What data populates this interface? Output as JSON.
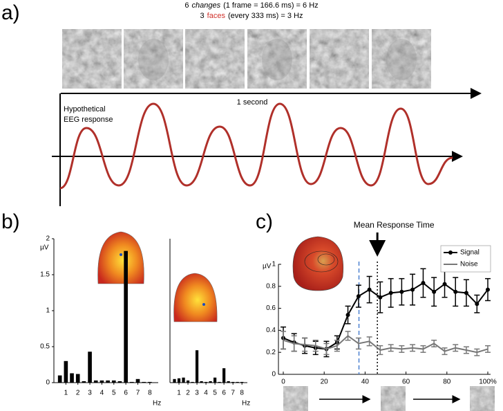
{
  "chart_data": [
    {
      "type": "diagram",
      "panel_label": "a)",
      "caption": [
        {
          "number": "6",
          "emphasis": "changes",
          "rest": "(1 frame = 166.6 ms) = 6 Hz"
        },
        {
          "number": "3",
          "emphasis": "faces",
          "rest": "(every 333 ms) = 3 Hz",
          "emphasis_color": "#d0302a"
        }
      ],
      "time_label": "1 second",
      "annotation": [
        "Hypothetical",
        "EEG response"
      ],
      "wave_color": "#b0302a"
    },
    {
      "type": "bar",
      "panel_label": "b)",
      "ylabel": "µV",
      "xlabel": "Hz",
      "x": [
        0.5,
        1,
        1.5,
        2,
        2.5,
        3,
        3.5,
        4,
        4.5,
        5,
        5.5,
        6,
        6.5,
        7,
        7.5,
        8
      ],
      "values": [
        0.1,
        0.3,
        0.13,
        0.12,
        0.02,
        0.43,
        0.03,
        0.03,
        0.03,
        0.03,
        0.02,
        1.83,
        0.01,
        0.05,
        0.01,
        0.01
      ],
      "color": "#000000",
      "xlim": [
        0,
        8.7
      ],
      "ylim": [
        0,
        2
      ],
      "xticks": [
        1,
        2,
        3,
        4,
        5,
        6,
        7,
        8
      ],
      "yticks": [
        0,
        0.5,
        1,
        1.5,
        2
      ]
    },
    {
      "type": "bar",
      "xlabel": "Hz",
      "x": [
        0.5,
        1,
        1.5,
        2,
        2.5,
        3,
        3.5,
        4,
        4.5,
        5,
        5.5,
        6,
        6.5,
        7,
        7.5,
        8
      ],
      "values": [
        0.05,
        0.06,
        0.07,
        0.03,
        0.01,
        0.45,
        0.02,
        0.01,
        0.02,
        0.07,
        0.01,
        0.2,
        0.02,
        0.01,
        0.01,
        0.01
      ],
      "color": "#000000",
      "xlim": [
        0,
        8.6
      ],
      "ylim": [
        0,
        2
      ],
      "xticks": [
        1,
        2,
        3,
        4,
        5,
        6,
        7,
        8
      ]
    },
    {
      "type": "line",
      "panel_label": "c)",
      "ylabel": "µV",
      "x": [
        0,
        5.3,
        10.5,
        15.8,
        21.1,
        26.3,
        31.6,
        36.8,
        42.1,
        47.4,
        52.6,
        57.9,
        63.2,
        68.4,
        73.7,
        78.9,
        84.2,
        89.5,
        94.7,
        100
      ],
      "series": [
        {
          "name": "Signal",
          "color": "#000000",
          "values": [
            0.33,
            0.29,
            0.26,
            0.24,
            0.23,
            0.29,
            0.54,
            0.71,
            0.77,
            0.7,
            0.74,
            0.75,
            0.77,
            0.83,
            0.75,
            0.82,
            0.75,
            0.74,
            0.64,
            0.77
          ],
          "errors": [
            0.1,
            0.08,
            0.07,
            0.06,
            0.07,
            0.06,
            0.08,
            0.1,
            0.12,
            0.14,
            0.13,
            0.12,
            0.14,
            0.13,
            0.13,
            0.12,
            0.13,
            0.12,
            0.08,
            0.1
          ]
        },
        {
          "name": "Noise",
          "color": "#777777",
          "values": [
            0.31,
            0.28,
            0.27,
            0.26,
            0.23,
            0.26,
            0.35,
            0.28,
            0.3,
            0.22,
            0.24,
            0.23,
            0.24,
            0.23,
            0.28,
            0.21,
            0.24,
            0.22,
            0.2,
            0.23
          ],
          "errors": [
            0.08,
            0.07,
            0.06,
            0.05,
            0.05,
            0.05,
            0.04,
            0.05,
            0.04,
            0.04,
            0.03,
            0.03,
            0.03,
            0.03,
            0.03,
            0.03,
            0.03,
            0.03,
            0.03,
            0.03
          ]
        }
      ],
      "xlim": [
        0,
        100
      ],
      "ylim": [
        0,
        1
      ],
      "xticks": [
        0,
        20,
        40,
        60,
        80,
        {
          "value": 100,
          "label": "100%"
        }
      ],
      "yticks": [
        0,
        0.2,
        0.4,
        0.6,
        0.8,
        1
      ],
      "vlines": [
        {
          "x": 37,
          "color": "#4a7fd0",
          "style": "dashed"
        },
        {
          "x": 46,
          "color": "#000000",
          "style": "dotted",
          "label": "Mean Response Time"
        }
      ],
      "legend": "upper right"
    }
  ]
}
